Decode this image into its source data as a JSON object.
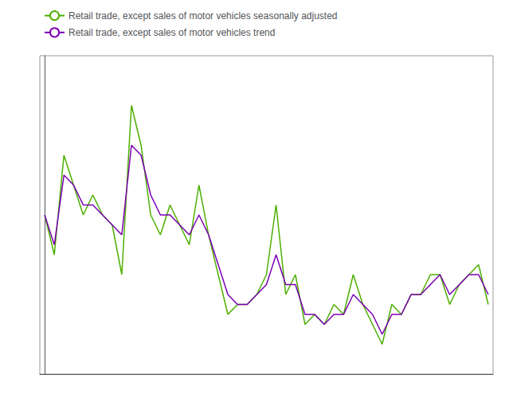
{
  "chart_data": {
    "type": "line",
    "x": [
      0,
      1,
      2,
      3,
      4,
      5,
      6,
      7,
      8,
      9,
      10,
      11,
      12,
      13,
      14,
      15,
      16,
      17,
      18,
      19,
      20,
      21,
      22,
      23,
      24,
      25,
      26,
      27,
      28,
      29,
      30,
      31,
      32,
      33,
      34,
      35,
      36,
      37,
      38,
      39,
      40,
      41,
      42,
      43,
      44,
      45,
      46
    ],
    "series": [
      {
        "name": "Retail trade, except sales of motor vehicles seasonally adjusted",
        "color": "#4caf00",
        "values": [
          97,
          93,
          103,
          100,
          97,
          99,
          97,
          96,
          91,
          108,
          104,
          97,
          95,
          98,
          96,
          94,
          100,
          95,
          91,
          87,
          88,
          88,
          89,
          91,
          98,
          89,
          91,
          86,
          87,
          86,
          88,
          87,
          91,
          88,
          86,
          84,
          88,
          87,
          89,
          89,
          91,
          91,
          88,
          90,
          91,
          92,
          88
        ]
      },
      {
        "name": "Retail trade, except sales of motor vehicles trend",
        "color": "#7b00b4",
        "values": [
          97,
          94,
          101,
          100,
          98,
          98,
          97,
          96,
          95,
          104,
          103,
          99,
          97,
          97,
          96,
          95,
          97,
          95,
          92,
          89,
          88,
          88,
          89,
          90,
          93,
          90,
          90,
          87,
          87,
          86,
          87,
          87,
          89,
          88,
          87,
          85,
          87,
          87,
          89,
          89,
          90,
          91,
          89,
          90,
          91,
          91,
          89
        ]
      }
    ],
    "xlim": [
      -0.5,
      46.5
    ],
    "ylim": [
      81,
      113
    ],
    "tick_labels": false,
    "grid": false,
    "legend": "upper left"
  }
}
